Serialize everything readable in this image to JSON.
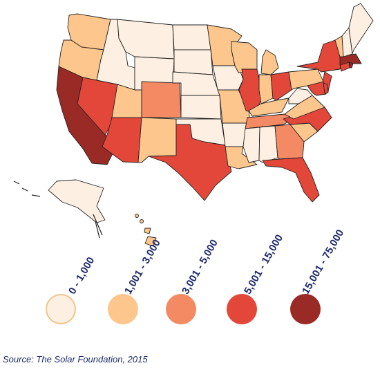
{
  "legend": {
    "bins": [
      {
        "label": "0 - 1,000",
        "color": "#fdf0e2"
      },
      {
        "label": "1,001 - 3,000",
        "color": "#fdc68c"
      },
      {
        "label": "3,001 - 5,000",
        "color": "#f48a64"
      },
      {
        "label": "5,001 - 15,000",
        "color": "#e3473a"
      },
      {
        "label": "15,001 - 75,000",
        "color": "#9a2a26"
      }
    ]
  },
  "source": "Source: The Solar Foundation, 2015"
}
